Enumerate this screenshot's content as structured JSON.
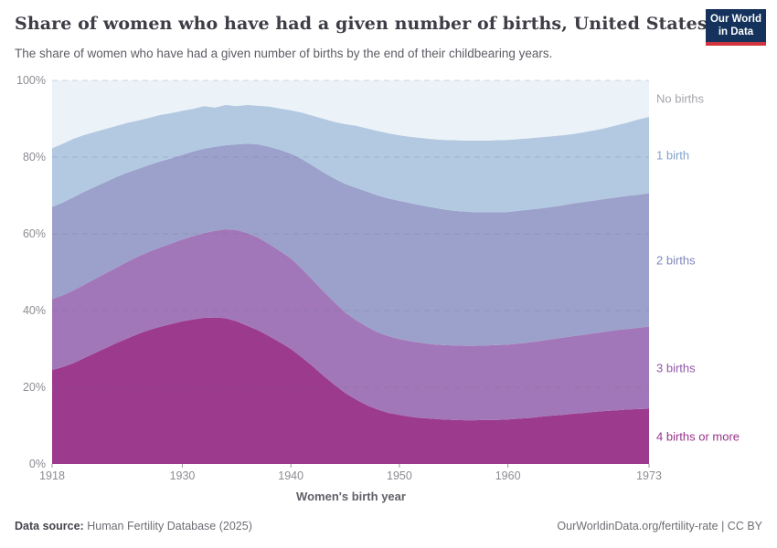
{
  "header": {
    "title": "Share of women who have had a given number of births, United States",
    "subtitle": "The share of women who have had a given number of births by the end of their childbearing years.",
    "logo": {
      "line1": "Our World",
      "line2": "in Data",
      "bg_color": "#14325c",
      "accent_color": "#d0343e"
    }
  },
  "chart_data": {
    "type": "area",
    "stacked_percent": true,
    "title": "Share of women who have had a given number of births, United States",
    "xlabel": "Women's birth year",
    "ylabel": "",
    "x_range": [
      1918,
      1973
    ],
    "ylim": [
      0,
      100
    ],
    "grid": "dashed-horizontal",
    "legend_position": "right-edge-labels",
    "x_ticks": [
      {
        "label": "1918",
        "value": 1918
      },
      {
        "label": "1930",
        "value": 1930
      },
      {
        "label": "1940",
        "value": 1940
      },
      {
        "label": "1950",
        "value": 1950
      },
      {
        "label": "1960",
        "value": 1960
      },
      {
        "label": "1973",
        "value": 1973
      }
    ],
    "y_ticks": [
      {
        "label": "0%",
        "value": 0
      },
      {
        "label": "20%",
        "value": 20
      },
      {
        "label": "40%",
        "value": 40
      },
      {
        "label": "60%",
        "value": 60
      },
      {
        "label": "80%",
        "value": 80
      },
      {
        "label": "100%",
        "value": 100
      }
    ],
    "years": [
      1918,
      1919,
      1920,
      1921,
      1922,
      1923,
      1924,
      1925,
      1926,
      1927,
      1928,
      1929,
      1930,
      1931,
      1932,
      1933,
      1934,
      1935,
      1936,
      1937,
      1938,
      1939,
      1940,
      1941,
      1942,
      1943,
      1944,
      1945,
      1946,
      1947,
      1948,
      1949,
      1950,
      1951,
      1952,
      1953,
      1954,
      1955,
      1956,
      1957,
      1958,
      1959,
      1960,
      1961,
      1962,
      1963,
      1964,
      1965,
      1966,
      1967,
      1968,
      1969,
      1970,
      1971,
      1972,
      1973
    ],
    "series": [
      {
        "name": "4 births or more",
        "color": "#9c3a8e",
        "label_color": "#97338a",
        "cumulative_top": [
          24.5,
          25.3,
          26.3,
          27.7,
          29.0,
          30.3,
          31.6,
          32.8,
          34.0,
          35.0,
          35.8,
          36.5,
          37.2,
          37.7,
          38.1,
          38.2,
          38.0,
          37.2,
          36.0,
          34.8,
          33.3,
          31.7,
          30.0,
          27.8,
          25.5,
          23.0,
          20.7,
          18.5,
          16.8,
          15.3,
          14.2,
          13.3,
          12.8,
          12.3,
          12.0,
          11.8,
          11.6,
          11.5,
          11.4,
          11.4,
          11.5,
          11.5,
          11.6,
          11.8,
          12.0,
          12.3,
          12.6,
          12.8,
          13.1,
          13.3,
          13.6,
          13.8,
          14.0,
          14.2,
          14.3,
          14.4
        ]
      },
      {
        "name": "3 births",
        "color": "#a277b9",
        "label_color": "#9157a9",
        "cumulative_top": [
          43.0,
          44.0,
          45.3,
          46.8,
          48.3,
          49.8,
          51.3,
          52.8,
          54.2,
          55.4,
          56.5,
          57.5,
          58.5,
          59.4,
          60.2,
          60.8,
          61.2,
          61.0,
          60.2,
          59.0,
          57.3,
          55.5,
          53.6,
          50.9,
          48.0,
          45.0,
          42.2,
          39.5,
          37.5,
          35.8,
          34.3,
          33.3,
          32.6,
          32.0,
          31.6,
          31.2,
          31.0,
          30.9,
          30.8,
          30.8,
          30.9,
          31.0,
          31.1,
          31.4,
          31.7,
          32.1,
          32.5,
          32.9,
          33.3,
          33.7,
          34.1,
          34.5,
          34.9,
          35.2,
          35.5,
          35.8
        ]
      },
      {
        "name": "2 births",
        "color": "#9ba1ca",
        "label_color": "#8187bb",
        "cumulative_top": [
          67.0,
          68.2,
          69.6,
          71.0,
          72.3,
          73.6,
          74.9,
          76.0,
          77.0,
          78.0,
          78.9,
          79.7,
          80.6,
          81.5,
          82.2,
          82.7,
          83.1,
          83.3,
          83.5,
          83.3,
          82.7,
          81.9,
          80.9,
          79.5,
          77.8,
          76.0,
          74.4,
          73.0,
          72.0,
          71.0,
          70.0,
          69.2,
          68.6,
          68.0,
          67.4,
          66.9,
          66.4,
          66.0,
          65.8,
          65.6,
          65.6,
          65.6,
          65.7,
          66.0,
          66.3,
          66.6,
          67.0,
          67.4,
          67.9,
          68.3,
          68.7,
          69.1,
          69.5,
          69.9,
          70.2,
          70.6
        ]
      },
      {
        "name": "1 birth",
        "color": "#b3c9e1",
        "label_color": "#82a3cb",
        "cumulative_top": [
          82.3,
          83.5,
          84.8,
          85.8,
          86.6,
          87.4,
          88.2,
          89.0,
          89.6,
          90.3,
          91.0,
          91.5,
          92.1,
          92.6,
          93.3,
          92.9,
          93.6,
          93.3,
          93.6,
          93.4,
          93.2,
          92.7,
          92.2,
          91.6,
          90.8,
          90.0,
          89.2,
          88.6,
          88.2,
          87.5,
          86.8,
          86.2,
          85.7,
          85.3,
          85.0,
          84.7,
          84.5,
          84.4,
          84.3,
          84.3,
          84.3,
          84.4,
          84.5,
          84.7,
          84.9,
          85.2,
          85.4,
          85.7,
          86.0,
          86.5,
          87.0,
          87.6,
          88.3,
          89.0,
          89.8,
          90.5
        ]
      },
      {
        "name": "No births",
        "color": "#ebf2f8",
        "label_color": "#a5a5ab",
        "cumulative_top": 100
      }
    ]
  },
  "footer": {
    "source_label": "Data source:",
    "source_value": "Human Fertility Database (2025)",
    "right_text": "OurWorldinData.org/fertility-rate | CC BY"
  }
}
